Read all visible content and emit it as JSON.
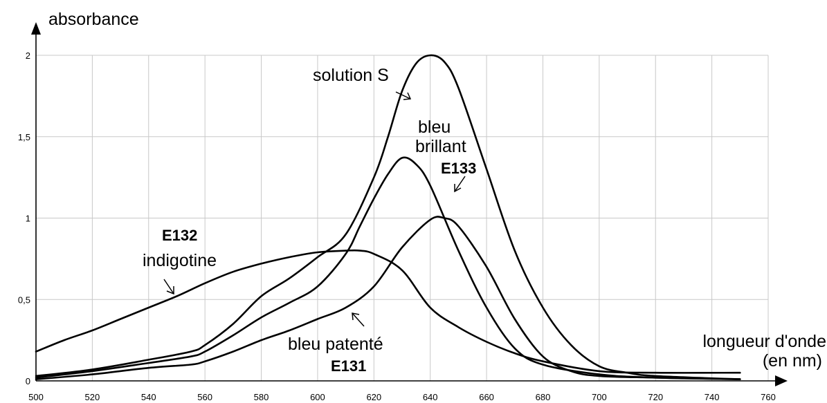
{
  "chart_data": {
    "type": "line",
    "ylabel": "absorbance",
    "xlabel_line1": "longueur d'onde",
    "xlabel_line2": "(en nm)",
    "xlim": [
      500,
      760
    ],
    "ylim": [
      0,
      2
    ],
    "x_ticks": [
      500,
      520,
      540,
      560,
      580,
      600,
      620,
      640,
      660,
      680,
      700,
      720,
      740,
      760
    ],
    "y_ticks": [
      {
        "value": 0,
        "label": "0"
      },
      {
        "value": 0.5,
        "label": "0,5"
      },
      {
        "value": 1,
        "label": "1"
      },
      {
        "value": 1.5,
        "label": "1,5"
      },
      {
        "value": 2,
        "label": "2"
      }
    ],
    "grid": true,
    "series": [
      {
        "name": "solution S",
        "x": [
          500,
          520,
          540,
          555,
          560,
          570,
          580,
          590,
          600,
          610,
          620,
          625,
          630,
          635,
          640,
          645,
          650,
          660,
          670,
          680,
          690,
          700,
          710,
          720,
          750
        ],
        "y": [
          0.03,
          0.07,
          0.13,
          0.18,
          0.22,
          0.35,
          0.52,
          0.63,
          0.76,
          0.9,
          1.25,
          1.5,
          1.78,
          1.95,
          2.0,
          1.96,
          1.8,
          1.3,
          0.8,
          0.45,
          0.22,
          0.09,
          0.05,
          0.03,
          0.01
        ]
      },
      {
        "name": "bleu brillant E133",
        "x": [
          500,
          520,
          540,
          555,
          560,
          570,
          580,
          590,
          600,
          610,
          615,
          620,
          625,
          630,
          635,
          640,
          650,
          660,
          670,
          680,
          700,
          720,
          750
        ],
        "y": [
          0.02,
          0.06,
          0.11,
          0.15,
          0.18,
          0.28,
          0.39,
          0.48,
          0.58,
          0.78,
          0.95,
          1.12,
          1.27,
          1.37,
          1.33,
          1.2,
          0.8,
          0.45,
          0.2,
          0.1,
          0.04,
          0.02,
          0.01
        ]
      },
      {
        "name": "bleu patenté E131",
        "x": [
          500,
          520,
          540,
          555,
          560,
          570,
          580,
          590,
          600,
          610,
          620,
          630,
          640,
          645,
          650,
          660,
          670,
          680,
          690,
          700,
          720,
          750
        ],
        "y": [
          0.01,
          0.04,
          0.08,
          0.1,
          0.12,
          0.18,
          0.25,
          0.31,
          0.38,
          0.45,
          0.58,
          0.82,
          0.99,
          1.0,
          0.95,
          0.7,
          0.38,
          0.15,
          0.06,
          0.03,
          0.02,
          0.01
        ]
      },
      {
        "name": "E132 indigotine",
        "x": [
          500,
          510,
          520,
          530,
          540,
          550,
          560,
          570,
          580,
          590,
          600,
          610,
          615,
          620,
          630,
          640,
          650,
          660,
          670,
          680,
          700,
          720,
          750
        ],
        "y": [
          0.18,
          0.25,
          0.31,
          0.38,
          0.45,
          0.52,
          0.6,
          0.67,
          0.72,
          0.76,
          0.79,
          0.8,
          0.8,
          0.78,
          0.68,
          0.45,
          0.33,
          0.24,
          0.17,
          0.12,
          0.06,
          0.05,
          0.05
        ]
      }
    ],
    "annotations": {
      "solution_s": "solution S",
      "bleu_brillant_1": "bleu",
      "bleu_brillant_2": "brillant",
      "e133": "E133",
      "e132": "E132",
      "indigotine": "indigotine",
      "bleu_patente": "bleu patenté",
      "e131": "E131"
    }
  }
}
